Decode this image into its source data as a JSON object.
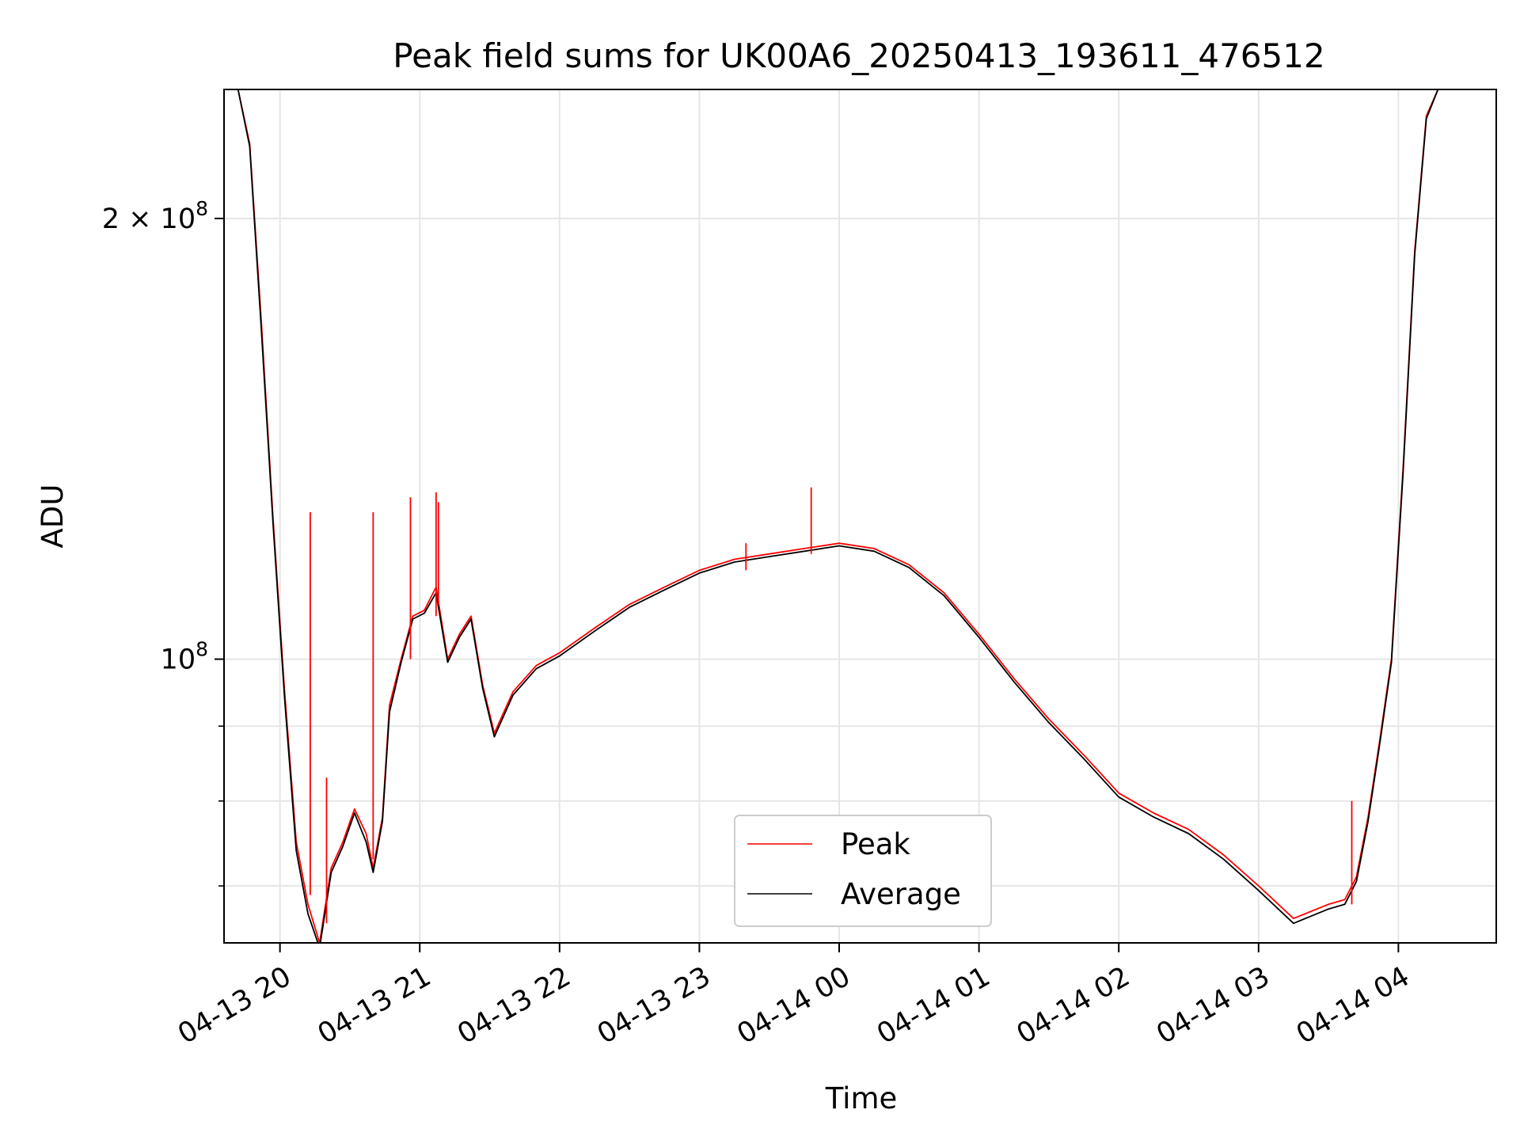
{
  "chart_data": {
    "type": "line",
    "title": "Peak field sums for UK00A6_20250413_193611_476512",
    "xlabel": "Time",
    "ylabel": "ADU",
    "yscale": "log",
    "grid": true,
    "legend_position": "bottom-center",
    "xlim": [
      "2025-04-13 19:36",
      "2025-04-14 04:42"
    ],
    "ylim": [
      64000000,
      245000000
    ],
    "x_ticks": [
      "04-13 20",
      "04-13 21",
      "04-13 22",
      "04-13 23",
      "04-14 00",
      "04-14 01",
      "04-14 02",
      "04-14 03",
      "04-14 04"
    ],
    "y_tick_values": [
      100000000,
      200000000
    ],
    "y_tick_labels": [
      {
        "mantissa": "",
        "base": "10",
        "exp": "8"
      },
      {
        "mantissa": "2 × ",
        "base": "10",
        "exp": "8"
      }
    ],
    "x": [
      "2025-04-13 19:36",
      "2025-04-13 19:42",
      "2025-04-13 19:47",
      "2025-04-13 19:52",
      "2025-04-13 19:57",
      "2025-04-13 20:02",
      "2025-04-13 20:07",
      "2025-04-13 20:12",
      "2025-04-13 20:17",
      "2025-04-13 20:22",
      "2025-04-13 20:27",
      "2025-04-13 20:32",
      "2025-04-13 20:37",
      "2025-04-13 20:40",
      "2025-04-13 20:44",
      "2025-04-13 20:47",
      "2025-04-13 20:52",
      "2025-04-13 20:57",
      "2025-04-13 21:02",
      "2025-04-13 21:07",
      "2025-04-13 21:12",
      "2025-04-13 21:17",
      "2025-04-13 21:22",
      "2025-04-13 21:27",
      "2025-04-13 21:32",
      "2025-04-13 21:40",
      "2025-04-13 21:50",
      "2025-04-13 22:00",
      "2025-04-13 22:15",
      "2025-04-13 22:30",
      "2025-04-13 22:45",
      "2025-04-13 23:00",
      "2025-04-13 23:15",
      "2025-04-13 23:30",
      "2025-04-13 23:45",
      "2025-04-14 00:00",
      "2025-04-14 00:15",
      "2025-04-14 00:30",
      "2025-04-14 00:45",
      "2025-04-14 01:00",
      "2025-04-14 01:15",
      "2025-04-14 01:30",
      "2025-04-14 01:45",
      "2025-04-14 02:00",
      "2025-04-14 02:15",
      "2025-04-14 02:30",
      "2025-04-14 02:45",
      "2025-04-14 03:00",
      "2025-04-14 03:15",
      "2025-04-14 03:30",
      "2025-04-14 03:37",
      "2025-04-14 03:42",
      "2025-04-14 03:47",
      "2025-04-14 03:52",
      "2025-04-14 03:57",
      "2025-04-14 04:02",
      "2025-04-14 04:07",
      "2025-04-14 04:12",
      "2025-04-14 04:17",
      "2025-04-14 04:22",
      "2025-04-14 04:27",
      "2025-04-14 04:32",
      "2025-04-14 04:37",
      "2025-04-14 04:42"
    ],
    "series": [
      {
        "name": "Peak",
        "color": "#ff0000",
        "values": [
          245000000,
          245000000,
          225000000,
          170000000,
          125000000,
          95000000,
          75000000,
          68000000,
          64000000,
          72000000,
          75000000,
          79000000,
          76000000,
          72000000,
          78000000,
          93000000,
          100000000,
          107000000,
          108000000,
          112000000,
          100000000,
          104000000,
          107000000,
          96000000,
          89000000,
          95000000,
          99000000,
          101000000,
          105000000,
          109000000,
          112000000,
          115000000,
          117000000,
          118000000,
          119000000,
          120000000,
          119000000,
          116000000,
          111000000,
          104000000,
          97000000,
          91000000,
          86000000,
          81000000,
          78500000,
          76500000,
          73500000,
          70000000,
          66500000,
          68000000,
          68500000,
          71000000,
          78000000,
          88000000,
          100000000,
          135000000,
          190000000,
          235000000,
          245000000,
          245000000,
          245000000,
          245000000,
          245000000,
          245000000
        ]
      },
      {
        "name": "Average",
        "color": "#000000",
        "values": [
          245000000,
          245000000,
          224000000,
          168000000,
          124000000,
          94000000,
          74000000,
          67000000,
          63500000,
          71500000,
          74500000,
          78500000,
          75000000,
          71500000,
          77500000,
          92000000,
          99500000,
          106500000,
          107500000,
          111000000,
          99500000,
          103500000,
          106500000,
          95500000,
          88500000,
          94500000,
          98500000,
          100500000,
          104500000,
          108500000,
          111500000,
          114500000,
          116500000,
          117500000,
          118500000,
          119500000,
          118500000,
          115500000,
          110500000,
          103500000,
          96500000,
          90500000,
          85500000,
          80500000,
          78000000,
          76000000,
          73000000,
          69500000,
          66000000,
          67500000,
          68000000,
          70500000,
          77500000,
          87500000,
          99500000,
          134000000,
          189000000,
          234000000,
          245000000,
          245000000,
          245000000,
          245000000,
          245000000,
          245000000
        ]
      }
    ],
    "spikes": [
      {
        "x": "2025-04-13 20:13",
        "values": [
          126000000,
          69000000
        ]
      },
      {
        "x": "2025-04-13 20:20",
        "values": [
          83000000,
          66000000
        ]
      },
      {
        "x": "2025-04-13 20:40",
        "values": [
          126000000,
          73000000
        ]
      },
      {
        "x": "2025-04-13 20:56",
        "values": [
          129000000,
          100000000
        ]
      },
      {
        "x": "2025-04-13 21:07",
        "values": [
          130000000,
          107000000
        ]
      },
      {
        "x": "2025-04-13 21:08",
        "values": [
          128000000,
          109000000
        ]
      },
      {
        "x": "2025-04-13 23:20",
        "values": [
          120000000,
          115000000
        ]
      },
      {
        "x": "2025-04-13 23:48",
        "values": [
          131000000,
          118000000
        ]
      },
      {
        "x": "2025-04-14 03:40",
        "values": [
          80000000,
          68000000
        ]
      }
    ]
  }
}
